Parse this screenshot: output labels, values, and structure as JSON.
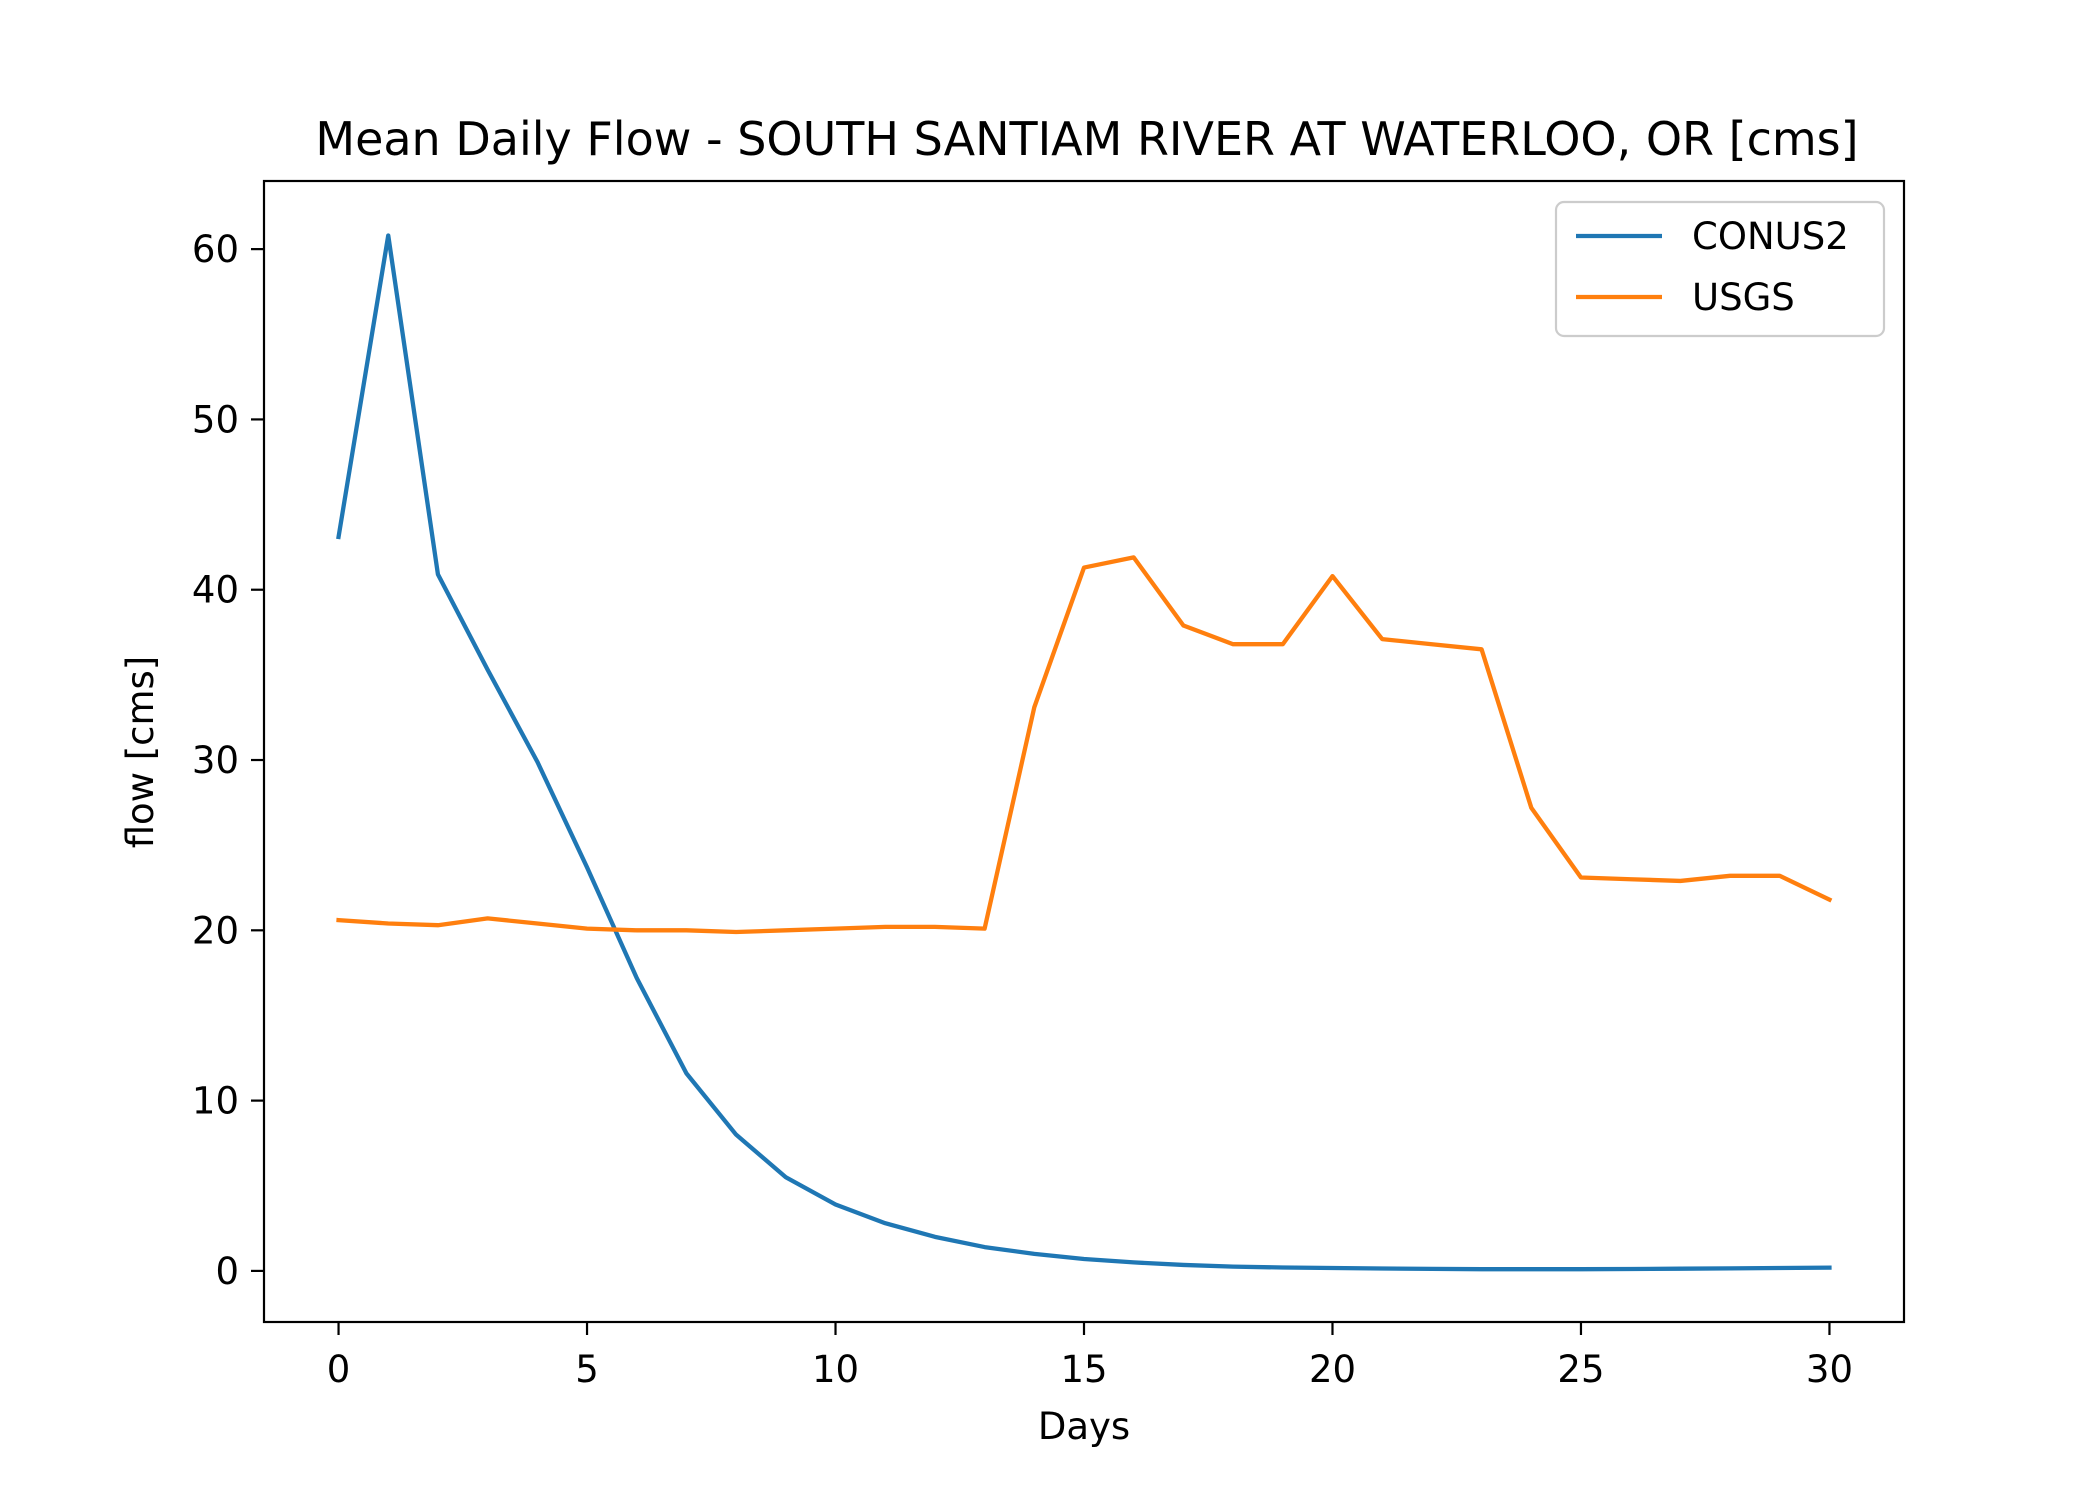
{
  "chart_data": {
    "type": "line",
    "title": "Mean Daily Flow - SOUTH SANTIAM RIVER AT WATERLOO, OR [cms]",
    "xlabel": "Days",
    "ylabel": "flow [cms]",
    "xlim": [
      -1.5,
      31.5
    ],
    "ylim": [
      -3,
      64
    ],
    "xticks": [
      0,
      5,
      10,
      15,
      20,
      25,
      30
    ],
    "yticks": [
      0,
      10,
      20,
      30,
      40,
      50,
      60
    ],
    "legend_position": "top-right",
    "grid": false,
    "x": [
      0,
      1,
      2,
      3,
      4,
      5,
      6,
      7,
      8,
      9,
      10,
      11,
      12,
      13,
      14,
      15,
      16,
      17,
      18,
      19,
      20,
      21,
      22,
      23,
      24,
      25,
      26,
      27,
      28,
      29,
      30
    ],
    "series": [
      {
        "name": "CONUS2",
        "color": "#1f77b4",
        "values": [
          43.1,
          60.8,
          40.9,
          35.3,
          29.9,
          23.7,
          17.2,
          11.6,
          8.0,
          5.5,
          3.9,
          2.8,
          2.0,
          1.4,
          1.0,
          0.7,
          0.5,
          0.35,
          0.25,
          0.2,
          0.17,
          0.14,
          0.12,
          0.1,
          0.1,
          0.1,
          0.11,
          0.13,
          0.15,
          0.17,
          0.19
        ]
      },
      {
        "name": "USGS",
        "color": "#ff7f0e",
        "values": [
          20.6,
          20.4,
          20.3,
          20.7,
          20.4,
          20.1,
          20.0,
          20.0,
          19.9,
          20.0,
          20.1,
          20.2,
          20.2,
          20.1,
          33.1,
          41.3,
          41.9,
          37.9,
          36.8,
          36.8,
          40.8,
          37.1,
          36.8,
          36.5,
          27.2,
          23.1,
          23.0,
          22.9,
          23.2,
          23.2,
          21.8
        ]
      }
    ]
  }
}
